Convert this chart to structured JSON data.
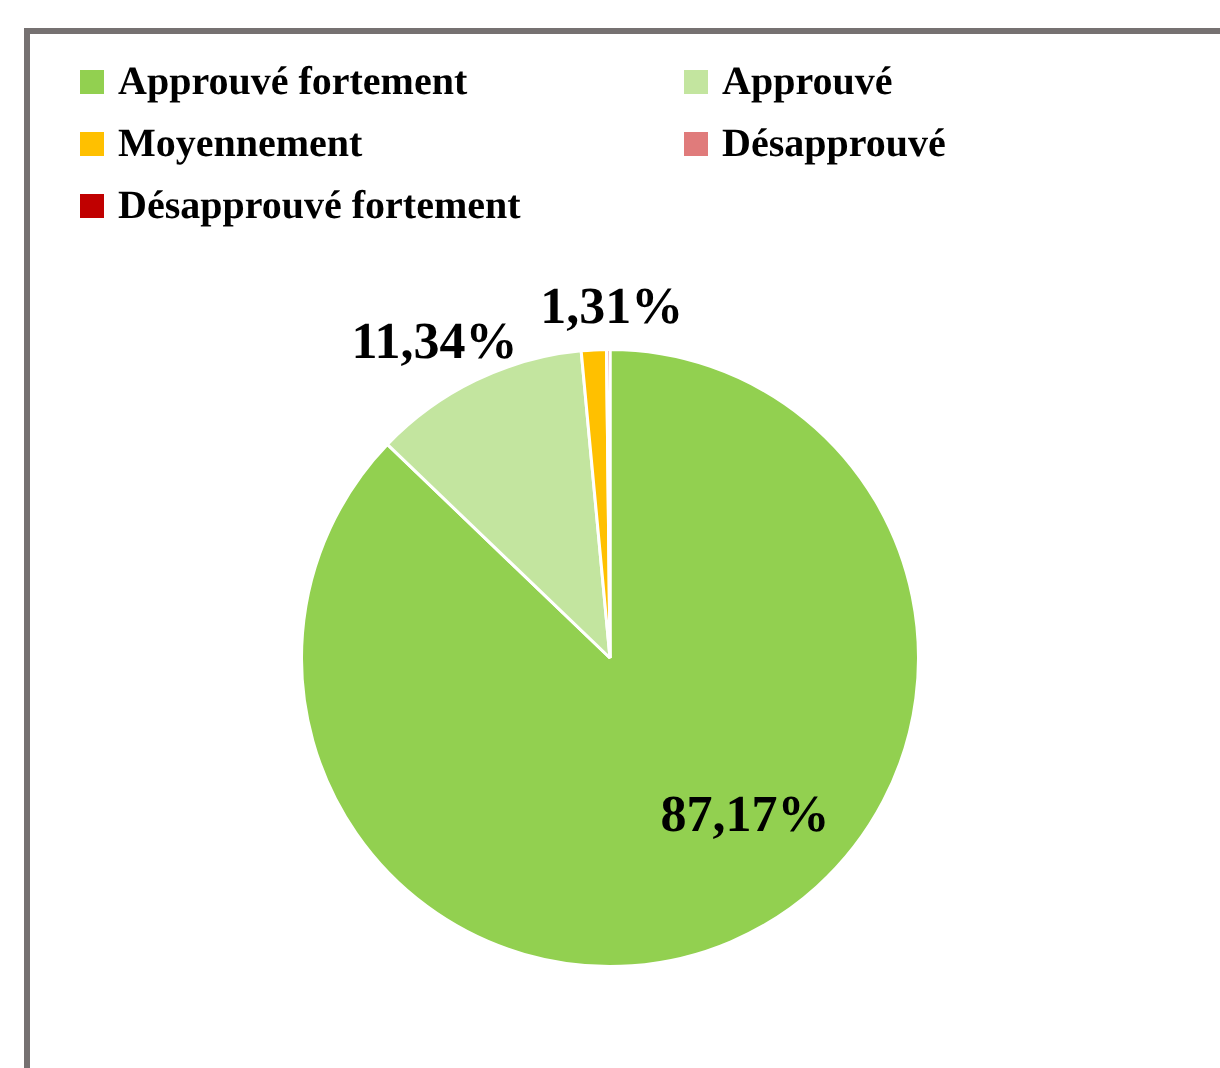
{
  "chart_data": {
    "type": "pie",
    "categories": [
      "Approuvé fortement",
      "Approuvé",
      "Moyennement",
      "Désapprouvé",
      "Désapprouvé fortement"
    ],
    "values": [
      87.17,
      11.34,
      1.31,
      0.18,
      0
    ],
    "colors": [
      "#92d050",
      "#c3e59f",
      "#ffc000",
      "#e07b7b",
      "#c00000"
    ],
    "value_labels": [
      "87,17%",
      "11,34%",
      "1,31%",
      null,
      null
    ],
    "legend": "top"
  }
}
